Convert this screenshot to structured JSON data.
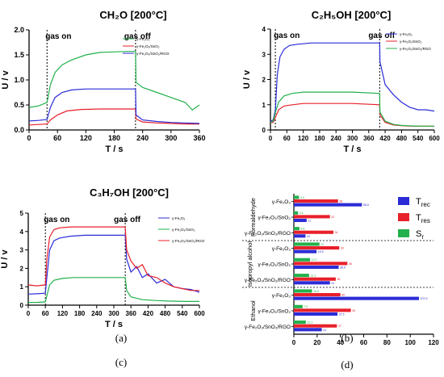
{
  "chart_data": [
    {
      "type": "line",
      "panel": "(a)",
      "title": "CH₂O [200°C]",
      "xlabel": "T / s",
      "ylabel": "U / v",
      "xlim": [
        0,
        360
      ],
      "ylim": [
        0.0,
        2.0
      ],
      "xticks": [
        "0",
        "60",
        "120",
        "180",
        "240",
        "300",
        "360"
      ],
      "yticks": [
        "0.0",
        "0.5",
        "1.0",
        "1.5",
        "2.0"
      ],
      "annotations": [
        {
          "text": "gas on",
          "x": 38
        },
        {
          "text": "gas off",
          "x": 225
        }
      ],
      "legend": [
        "γ-Fe₂O₃",
        "γ-Fe₂O₃/SnO₂",
        "γ-Fe₂O₃/SnO₂/RGO"
      ],
      "legend_position": "top-right",
      "series": [
        {
          "name": "γ-Fe₂O₃",
          "color": "#22b14c",
          "x": [
            0,
            20,
            38,
            45,
            55,
            70,
            90,
            120,
            150,
            180,
            210,
            225,
            226,
            240,
            270,
            300,
            330,
            345,
            360
          ],
          "y": [
            0.45,
            0.48,
            0.55,
            0.9,
            1.15,
            1.3,
            1.4,
            1.5,
            1.55,
            1.56,
            1.57,
            1.57,
            0.95,
            0.85,
            0.75,
            0.65,
            0.55,
            0.4,
            0.5
          ]
        },
        {
          "name": "γ-Fe₂O₃/SnO₂",
          "color": "#e8202a",
          "x": [
            0,
            20,
            38,
            45,
            60,
            80,
            110,
            150,
            190,
            225,
            226,
            240,
            270,
            300,
            330,
            360
          ],
          "y": [
            0.1,
            0.11,
            0.12,
            0.2,
            0.3,
            0.38,
            0.41,
            0.42,
            0.42,
            0.42,
            0.22,
            0.16,
            0.14,
            0.13,
            0.12,
            0.12
          ]
        },
        {
          "name": "γ-Fe₂O₃/SnO₂/RGO",
          "color": "#2c2cd6",
          "x": [
            0,
            20,
            38,
            45,
            55,
            70,
            90,
            120,
            160,
            200,
            225,
            226,
            240,
            270,
            300,
            330,
            360
          ],
          "y": [
            0.18,
            0.19,
            0.21,
            0.45,
            0.65,
            0.75,
            0.8,
            0.82,
            0.82,
            0.82,
            0.82,
            0.3,
            0.2,
            0.17,
            0.15,
            0.14,
            0.13
          ]
        }
      ]
    },
    {
      "type": "line",
      "panel": "(b)",
      "title": "C₂H₅OH [200°C]",
      "xlabel": "T / s",
      "ylabel": "U / v",
      "xlim": [
        0,
        600
      ],
      "ylim": [
        0,
        4
      ],
      "xticks": [
        "0",
        "60",
        "120",
        "180",
        "240",
        "300",
        "360",
        "420",
        "480",
        "540",
        "600"
      ],
      "yticks": [
        "0",
        "1",
        "2",
        "3",
        "4"
      ],
      "annotations": [
        {
          "text": "gas on",
          "x": 18
        },
        {
          "text": "gas off",
          "x": 400
        }
      ],
      "legend": [
        "γ-Fe₂O₃",
        "γ-Fe₂O₃/SnO₂",
        "γ-Fe₂O₃/SnO₂/RGO"
      ],
      "legend_position": "top-right",
      "series": [
        {
          "name": "γ-Fe₂O₃",
          "color": "#2c2cd6",
          "x": [
            0,
            10,
            18,
            25,
            35,
            50,
            70,
            100,
            150,
            200,
            250,
            300,
            350,
            400,
            401,
            420,
            450,
            480,
            510,
            540,
            570,
            600
          ],
          "y": [
            0.35,
            0.4,
            0.8,
            2.2,
            2.9,
            3.2,
            3.35,
            3.4,
            3.45,
            3.45,
            3.45,
            3.45,
            3.45,
            3.45,
            2.7,
            1.8,
            1.4,
            1.1,
            0.9,
            0.8,
            0.8,
            0.75
          ]
        },
        {
          "name": "γ-Fe₂O₃/SnO₂",
          "color": "#e8202a",
          "x": [
            0,
            10,
            18,
            30,
            50,
            80,
            120,
            200,
            300,
            400,
            401,
            420,
            450,
            480,
            520,
            560,
            600
          ],
          "y": [
            0.3,
            0.3,
            0.5,
            0.8,
            0.95,
            1.0,
            1.05,
            1.05,
            1.05,
            1.0,
            0.6,
            0.3,
            0.2,
            0.17,
            0.15,
            0.15,
            0.15
          ]
        },
        {
          "name": "γ-Fe₂O₃/SnO₂/RGO",
          "color": "#22b14c",
          "x": [
            0,
            10,
            18,
            30,
            50,
            80,
            120,
            200,
            300,
            400,
            401,
            420,
            450,
            480,
            520,
            560,
            600
          ],
          "y": [
            0.3,
            0.35,
            0.7,
            1.1,
            1.35,
            1.45,
            1.5,
            1.5,
            1.5,
            1.45,
            0.7,
            0.35,
            0.22,
            0.18,
            0.16,
            0.15,
            0.15
          ]
        }
      ]
    },
    {
      "type": "line",
      "panel": "(c)",
      "title": "C₃H₇OH [200°C]",
      "xlabel": "T / s",
      "ylabel": "U / v",
      "xlim": [
        0,
        600
      ],
      "ylim": [
        0,
        5
      ],
      "xticks": [
        "0",
        "60",
        "120",
        "180",
        "240",
        "300",
        "360",
        "420",
        "480",
        "540",
        "600"
      ],
      "yticks": [
        "0",
        "1",
        "2",
        "3",
        "4",
        "5"
      ],
      "annotations": [
        {
          "text": "gas on",
          "x": 60
        },
        {
          "text": "gas off",
          "x": 340
        }
      ],
      "legend": [
        "γ-Fe₂O₃",
        "γ-Fe₂O₃/SnO₂",
        "γ-Fe₂O₃/SnO₂/RGO"
      ],
      "legend_position": "top-right",
      "series": [
        {
          "name": "γ-Fe₂O₃",
          "color": "#2c2cd6",
          "x": [
            0,
            30,
            60,
            65,
            75,
            90,
            110,
            150,
            200,
            250,
            300,
            340,
            345,
            360,
            380,
            400,
            420,
            450,
            480,
            510,
            540,
            570,
            600
          ],
          "y": [
            0.6,
            0.62,
            0.65,
            1.5,
            3.0,
            3.5,
            3.65,
            3.75,
            3.8,
            3.8,
            3.8,
            3.8,
            2.5,
            1.8,
            2.1,
            1.5,
            1.7,
            1.2,
            1.4,
            1.0,
            0.9,
            0.85,
            0.7
          ]
        },
        {
          "name": "γ-Fe₂O₃/SnO₂",
          "color": "#22b14c",
          "x": [
            0,
            30,
            60,
            65,
            75,
            90,
            120,
            160,
            220,
            280,
            340,
            345,
            360,
            400,
            450,
            500,
            550,
            600
          ],
          "y": [
            0.15,
            0.15,
            0.18,
            0.5,
            1.1,
            1.35,
            1.45,
            1.5,
            1.5,
            1.5,
            1.5,
            0.8,
            0.45,
            0.3,
            0.25,
            0.22,
            0.2,
            0.2
          ]
        },
        {
          "name": "γ-Fe₂O₃/SnO₂/RGO",
          "color": "#e8202a",
          "x": [
            0,
            30,
            60,
            65,
            75,
            90,
            110,
            150,
            200,
            260,
            300,
            340,
            345,
            360,
            380,
            400,
            420,
            450,
            480,
            510,
            540,
            570,
            600
          ],
          "y": [
            1.1,
            1.05,
            1.1,
            2.5,
            3.7,
            4.1,
            4.2,
            4.25,
            4.25,
            4.25,
            4.25,
            4.25,
            3.0,
            2.4,
            2.0,
            2.2,
            1.6,
            1.5,
            1.2,
            1.0,
            0.9,
            0.8,
            0.8
          ]
        }
      ]
    },
    {
      "type": "bar",
      "orientation": "horizontal",
      "panel": "(d)",
      "xlim": [
        0,
        120
      ],
      "xticks": [
        "0",
        "20",
        "40",
        "60",
        "80",
        "100",
        "120"
      ],
      "categories": [
        "γ-Fe₂O₃",
        "γ-Fe₂O₃/SnO₂",
        "γ-Fe₂O₃/SnO₂/RGO"
      ],
      "groups": [
        "Formaldehyde",
        "Isopropyl alcohol",
        "Ethanol"
      ],
      "legend": [
        "T_rec",
        "T_res",
        "S_r"
      ],
      "legend_position": "right",
      "series_colors": {
        "S_r": "#22b14c",
        "T_res": "#e8202a",
        "T_rec": "#2c2cd6"
      },
      "values": [
        {
          "group": "Formaldehyde",
          "category": "γ-Fe₂O₃",
          "S_r": 4.4,
          "T_res": 38.0,
          "T_rec": 58.5
        },
        {
          "group": "Formaldehyde",
          "category": "γ-Fe₂O₃/SnO₂",
          "S_r": 3.6,
          "T_res": 31.0,
          "T_rec": 11.0
        },
        {
          "group": "Formaldehyde",
          "category": "γ-Fe₂O₃/SnO₂/RGO",
          "S_r": 4.8,
          "T_res": 34.0,
          "T_rec": 10.0
        },
        {
          "group": "Isopropyl alcohol",
          "category": "γ-Fe₂O₃",
          "S_r": 22.0,
          "T_res": 39.0,
          "T_rec": 19.5
        },
        {
          "group": "Isopropyl alcohol",
          "category": "γ-Fe₂O₃/SnO₂",
          "S_r": 13.9,
          "T_res": 46.0,
          "T_rec": 38.5
        },
        {
          "group": "Isopropyl alcohol",
          "category": "γ-Fe₂O₃/SnO₂/RGO",
          "S_r": 13.1,
          "T_res": 36.0,
          "T_rec": 31.0
        },
        {
          "group": "Ethanol",
          "category": "γ-Fe₂O₃",
          "S_r": 15.6,
          "T_res": 40.0,
          "T_rec": 107.5
        },
        {
          "group": "Ethanol",
          "category": "γ-Fe₂O₃/SnO₂",
          "S_r": 7.5,
          "T_res": 49.0,
          "T_rec": 37.5
        },
        {
          "group": "Ethanol",
          "category": "γ-Fe₂O₃/SnO₂/RGO",
          "S_r": 10.3,
          "T_res": 37.0,
          "T_rec": 24.0
        }
      ]
    }
  ]
}
